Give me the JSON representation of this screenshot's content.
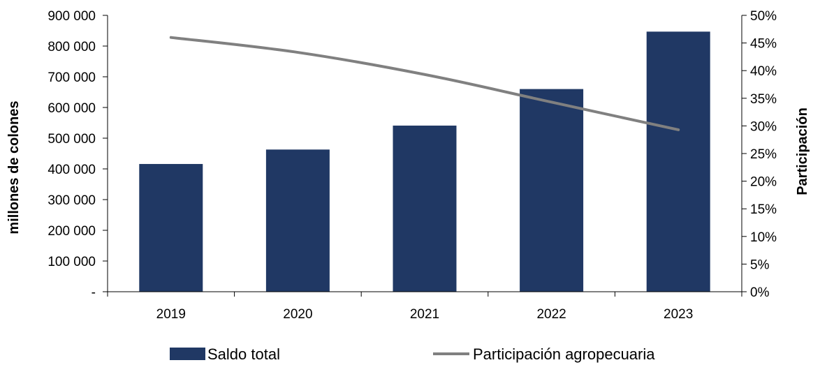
{
  "chart_data": {
    "type": "bar",
    "categories": [
      "2019",
      "2020",
      "2021",
      "2022",
      "2023"
    ],
    "series": [
      {
        "name": "Saldo total",
        "type": "bar",
        "axis": "left",
        "color": "#203864",
        "values": [
          416000,
          463000,
          541000,
          660000,
          847000
        ]
      },
      {
        "name": "Participación agropecuaria",
        "type": "line",
        "axis": "right",
        "color": "#808080",
        "values": [
          0.46,
          0.433,
          0.393,
          0.343,
          0.293
        ]
      }
    ],
    "ylabel": "millones de colones",
    "y2label": "Participación",
    "ylim": [
      0,
      900000
    ],
    "y2lim": [
      0,
      0.5
    ],
    "yticks": [
      "-",
      "100 000",
      "200 000",
      "300 000",
      "400 000",
      "500 000",
      "600 000",
      "700 000",
      "800 000",
      "900 000"
    ],
    "y2ticks": [
      "0%",
      "5%",
      "10%",
      "15%",
      "20%",
      "25%",
      "30%",
      "35%",
      "40%",
      "45%",
      "50%"
    ],
    "legend": {
      "placement": "bottom"
    },
    "grid": false
  }
}
